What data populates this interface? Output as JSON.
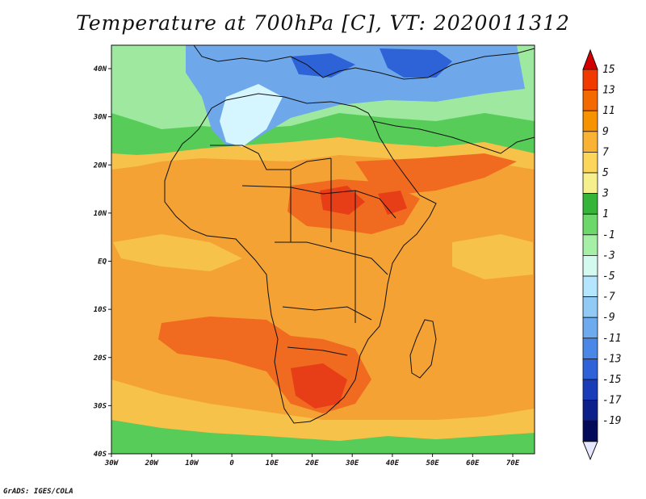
{
  "title": "Temperature at 700hPa [C], VT: 2020011312",
  "credit": "GrADS: IGES/COLA",
  "lat_ticks": [
    "40N",
    "30N",
    "20N",
    "10N",
    "EQ",
    "10S",
    "20S",
    "30S",
    "40S"
  ],
  "lon_ticks": [
    "30W",
    "20W",
    "10W",
    "0",
    "10E",
    "20E",
    "30E",
    "40E",
    "50E",
    "60E",
    "70E"
  ],
  "colorbar": {
    "labels": [
      "15",
      "13",
      "11",
      "9",
      "7",
      "5",
      "3",
      "1",
      "-1",
      "-3",
      "-5",
      "-7",
      "-9",
      "-11",
      "-13",
      "-15",
      "-17",
      "-19"
    ],
    "colors": [
      "#d40000",
      "#f03a00",
      "#f56a00",
      "#f79200",
      "#f9b233",
      "#fbd65b",
      "#f5ef8c",
      "#35b43a",
      "#6cd86c",
      "#a6efa6",
      "#d4faf0",
      "#b4e6ff",
      "#90caf5",
      "#6eaaee",
      "#4b87e6",
      "#2f62d9",
      "#1b3cb8",
      "#0d1f8a",
      "#040a5a"
    ],
    "under_color": "#e6e8ff"
  },
  "map_colors": {
    "sea_warm": "#f4a233",
    "hot": "#f06a20",
    "very_hot": "#e83e18",
    "mild": "#f6c24a",
    "cool_green": "#58cc58",
    "light_green": "#9fe89f",
    "cold_blue": "#6ea8ea",
    "cold_dark": "#2e63d8",
    "pale": "#d6f6ff",
    "coast": "#111111"
  }
}
